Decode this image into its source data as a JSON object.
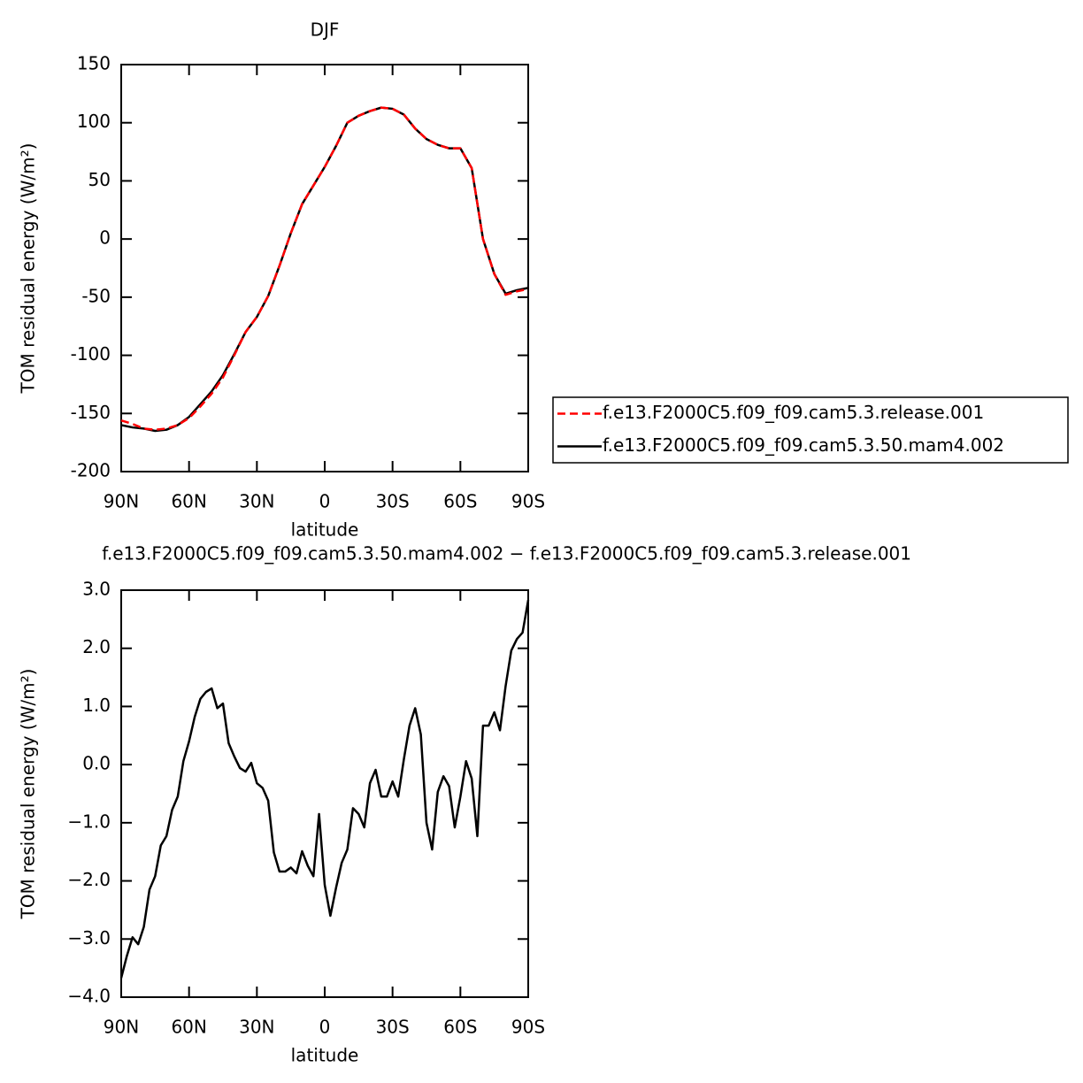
{
  "chart_data": [
    {
      "type": "line",
      "title": "DJF",
      "xlabel": "latitude",
      "ylabel": "TOM residual energy (W/m²)",
      "x": [
        90,
        85,
        80,
        75,
        70,
        65,
        60,
        55,
        50,
        45,
        40,
        35,
        30,
        25,
        20,
        15,
        10,
        5,
        0,
        -5,
        -10,
        -15,
        -20,
        -25,
        -30,
        -35,
        -40,
        -45,
        -50,
        -55,
        -60,
        -65,
        -70,
        -75,
        -80,
        -85,
        -90
      ],
      "series": [
        {
          "name": "f.e13.F2000C5.f09_f09.cam5.3.release.001",
          "color": "#ff0000",
          "dashed": true,
          "values": [
            -156,
            -159,
            -163,
            -164,
            -163,
            -160,
            -154,
            -144,
            -133,
            -119,
            -100,
            -80,
            -67,
            -49,
            -23,
            5,
            30,
            46,
            62,
            80,
            100,
            106,
            110,
            113,
            112,
            107,
            95,
            86,
            81,
            78,
            78,
            61,
            0,
            -30,
            -48,
            -45,
            -43
          ]
        },
        {
          "name": "f.e13.F2000C5.f09_f09.cam5.3.50.mam4.002",
          "color": "#000000",
          "dashed": false,
          "values": [
            -160,
            -162,
            -163,
            -165,
            -164,
            -160,
            -153,
            -142,
            -131,
            -117,
            -99,
            -80,
            -67,
            -49,
            -23,
            5,
            30,
            46,
            62,
            80,
            100,
            106,
            110,
            113,
            112,
            107,
            95,
            86,
            81,
            78,
            78,
            61,
            0,
            -30,
            -47,
            -44,
            -42
          ]
        }
      ],
      "xlim": [
        90,
        -90
      ],
      "xticks": [
        {
          "value": 90,
          "label": "90N"
        },
        {
          "value": 60,
          "label": "60N"
        },
        {
          "value": 30,
          "label": "30N"
        },
        0,
        {
          "value": -30,
          "label": "30S"
        },
        {
          "value": -60,
          "label": "60S"
        },
        {
          "value": -90,
          "label": "90S"
        }
      ],
      "ylim": [
        -200,
        150
      ],
      "yticks": [
        -200,
        -150,
        -100,
        -50,
        0,
        50,
        100,
        150
      ],
      "legend": "right"
    },
    {
      "type": "line",
      "title": "f.e13.F2000C5.f09_f09.cam5.3.50.mam4.002 − f.e13.F2000C5.f09_f09.cam5.3.release.001",
      "xlabel": "latitude",
      "ylabel": "TOM residual energy (W/m²)",
      "x": [
        90,
        87.5,
        85,
        82.5,
        80,
        77.5,
        75,
        72.5,
        70,
        67.5,
        65,
        62.5,
        60,
        57.5,
        55,
        52.5,
        50,
        47.5,
        45,
        42.5,
        40,
        37.5,
        35,
        32.5,
        30,
        27.5,
        25,
        22.5,
        20,
        17.5,
        15,
        12.5,
        10,
        7.5,
        5,
        2.5,
        0,
        -2.5,
        -5,
        -7.5,
        -10,
        -12.5,
        -15,
        -17.5,
        -20,
        -22.5,
        -25,
        -27.5,
        -30,
        -32.5,
        -35,
        -37.5,
        -40,
        -42.5,
        -45,
        -47.5,
        -50,
        -52.5,
        -55,
        -57.5,
        -60,
        -62.5,
        -65,
        -67.5,
        -70,
        -72.5,
        -75,
        -77.5,
        -80,
        -82.5,
        -85,
        -87.5,
        -90
      ],
      "color": "#000000",
      "values": [
        -3.67,
        -3.29,
        -2.97,
        -3.09,
        -2.79,
        -2.15,
        -1.92,
        -1.39,
        -1.23,
        -0.78,
        -0.55,
        0.06,
        0.4,
        0.82,
        1.13,
        1.25,
        1.31,
        0.97,
        1.05,
        0.37,
        0.14,
        -0.06,
        -0.12,
        0.03,
        -0.32,
        -0.4,
        -0.62,
        -1.51,
        -1.84,
        -1.84,
        -1.77,
        -1.87,
        -1.49,
        -1.74,
        -1.92,
        -0.85,
        -2.07,
        -2.6,
        -2.12,
        -1.69,
        -1.46,
        -0.75,
        -0.85,
        -1.08,
        -0.32,
        -0.09,
        -0.55,
        -0.55,
        -0.29,
        -0.55,
        0.09,
        0.67,
        0.97,
        0.52,
        -1.0,
        -1.46,
        -0.47,
        -0.2,
        -0.37,
        -1.08,
        -0.55,
        0.06,
        -0.24,
        -1.23,
        0.67,
        0.67,
        0.9,
        0.59,
        1.35,
        1.96,
        2.16,
        2.27,
        2.83
      ],
      "xlim": [
        90,
        -90
      ],
      "xticks": [
        {
          "value": 90,
          "label": "90N"
        },
        {
          "value": 60,
          "label": "60N"
        },
        {
          "value": 30,
          "label": "30N"
        },
        0,
        {
          "value": -30,
          "label": "30S"
        },
        {
          "value": -60,
          "label": "60S"
        },
        {
          "value": -90,
          "label": "90S"
        }
      ],
      "ylim": [
        -4,
        3
      ],
      "yticks": [
        {
          "value": -4,
          "label": "−4.0"
        },
        {
          "value": -3,
          "label": "−3.0"
        },
        {
          "value": -2,
          "label": "−2.0"
        },
        {
          "value": -1,
          "label": "−1.0"
        },
        {
          "value": 0,
          "label": "0.0"
        },
        {
          "value": 1,
          "label": "1.0"
        },
        {
          "value": 2,
          "label": "2.0"
        },
        {
          "value": 3,
          "label": "3.0"
        }
      ]
    }
  ]
}
